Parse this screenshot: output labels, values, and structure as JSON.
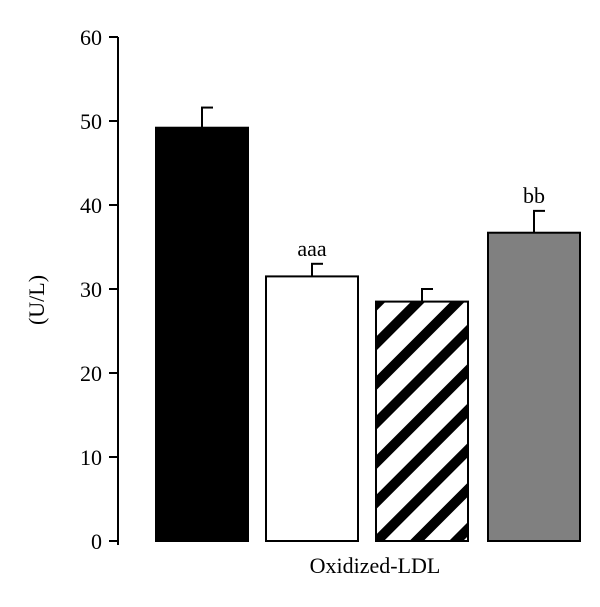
{
  "chart_data": {
    "type": "bar",
    "title": "",
    "xlabel": "Oxidized-LDL",
    "ylabel": "(U/L)",
    "ylim": [
      0,
      60
    ],
    "yticks": [
      0,
      10,
      20,
      30,
      40,
      50,
      60
    ],
    "grid": false,
    "legend": "none",
    "categories": [
      "",
      "",
      "",
      ""
    ],
    "values": [
      49.2,
      31.5,
      28.5,
      36.7
    ],
    "errors": [
      2.4,
      1.5,
      1.5,
      2.6
    ],
    "annotations": [
      "",
      "aaa",
      "",
      "bb"
    ],
    "fills": [
      "solid-black",
      "white",
      "diagonal-stripes",
      "solid-gray"
    ],
    "colors": {
      "black": "#000000",
      "white": "#ffffff",
      "gray": "#808080",
      "stripe": "#000000"
    }
  }
}
